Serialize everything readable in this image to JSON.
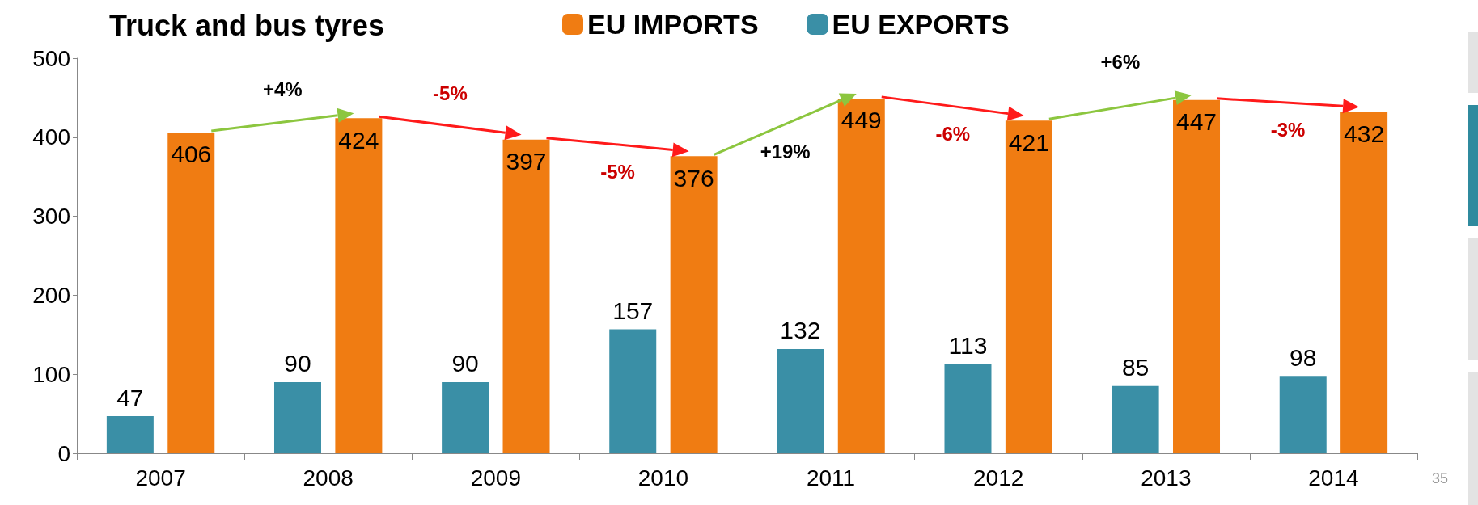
{
  "chart_data": {
    "type": "bar",
    "title": "Truck and bus tyres",
    "categories": [
      "2007",
      "2008",
      "2009",
      "2010",
      "2011",
      "2012",
      "2013",
      "2014"
    ],
    "series": [
      {
        "name": "EU EXPORTS",
        "color": "#3a8fa6",
        "values": [
          47,
          90,
          90,
          157,
          132,
          113,
          85,
          98
        ]
      },
      {
        "name": "EU IMPORTS",
        "color": "#f07c12",
        "values": [
          406,
          424,
          397,
          376,
          449,
          421,
          447,
          432
        ]
      }
    ],
    "ylim": [
      0,
      500
    ],
    "yticks": [
      0,
      100,
      200,
      300,
      400,
      500
    ],
    "grid": false,
    "legend": "top",
    "data_labels": true,
    "annotations": [
      "+4%",
      "-5%",
      "-5%",
      "+19%",
      "-6%",
      "+6%",
      "-3%",
      "35"
    ]
  }
}
